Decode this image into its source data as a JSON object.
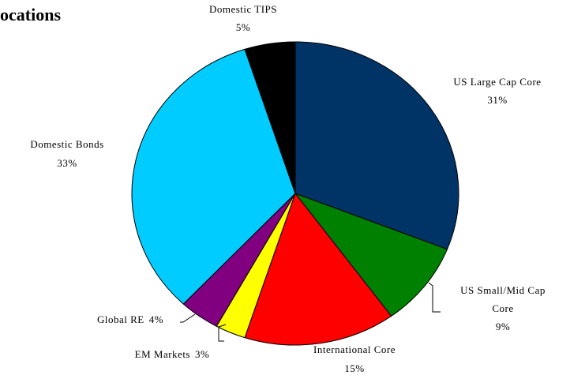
{
  "chart_data": {
    "type": "pie",
    "title": "ocations",
    "categories": [
      "US Large Cap Core",
      "US Small/Mid Cap Core",
      "International Core",
      "EM Markets",
      "Global RE",
      "Domestic Bonds",
      "Domestic TIPS"
    ],
    "values": [
      31,
      9,
      15,
      3,
      4,
      33,
      5
    ],
    "value_labels": [
      "31%",
      "9%",
      "15%",
      "3%",
      "4%",
      "33%",
      "5%"
    ],
    "colors": [
      "#003366",
      "#008000",
      "#ff0000",
      "#ffff00",
      "#800080",
      "#00ccff",
      "#000000"
    ]
  }
}
